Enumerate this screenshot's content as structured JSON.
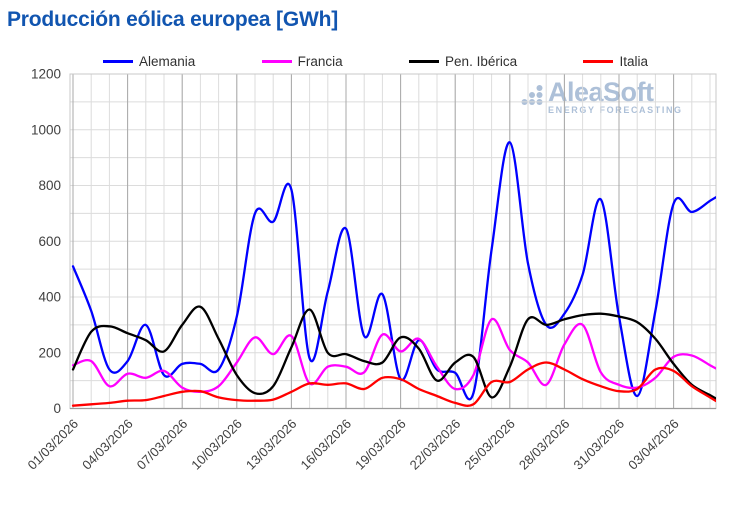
{
  "title": "Producción eólica europea [GWh]",
  "watermark": {
    "brand": "AleaSoft",
    "tagline": "ENERGY FORECASTING",
    "color": "#a9bdd6"
  },
  "colors": {
    "title": "#1155b0",
    "axis_text": "#3f3f3f",
    "grid_minor": "#dcdcdc",
    "grid_major": "#a9a9a9",
    "plot_border": "#c8c8c8",
    "axis_line": "#9b9b9b",
    "background": "#ffffff"
  },
  "chart_data": {
    "type": "line",
    "title": "Producción eólica europea [GWh]",
    "xlabel": "",
    "ylabel": "GWh",
    "ylim": [
      0,
      1200
    ],
    "y_ticks": [
      0,
      200,
      400,
      600,
      800,
      1000,
      1200
    ],
    "y_minor_step": 100,
    "grid": "both",
    "legend_position": "top",
    "x_tick_labels": [
      "01/03/2026",
      "04/03/2026",
      "07/03/2026",
      "10/03/2026",
      "13/03/2026",
      "16/03/2026",
      "19/03/2026",
      "22/03/2026",
      "25/03/2026",
      "28/03/2026",
      "31/03/2026",
      "03/04/2026"
    ],
    "x_tick_days": [
      0,
      3,
      6,
      9,
      12,
      15,
      18,
      21,
      24,
      27,
      30,
      33
    ],
    "categories": [
      "01/03/2026",
      "02/03/2026",
      "03/03/2026",
      "04/03/2026",
      "05/03/2026",
      "06/03/2026",
      "07/03/2026",
      "08/03/2026",
      "09/03/2026",
      "10/03/2026",
      "11/03/2026",
      "12/03/2026",
      "13/03/2026",
      "14/03/2026",
      "15/03/2026",
      "16/03/2026",
      "17/03/2026",
      "18/03/2026",
      "19/03/2026",
      "20/03/2026",
      "21/03/2026",
      "22/03/2026",
      "23/03/2026",
      "24/03/2026",
      "25/03/2026",
      "26/03/2026",
      "27/03/2026",
      "28/03/2026",
      "29/03/2026",
      "30/03/2026",
      "31/03/2026",
      "01/04/2026",
      "02/04/2026",
      "03/04/2026",
      "04/04/2026",
      "05/04/2026"
    ],
    "series": [
      {
        "name": "Alemania",
        "color": "#0000ff",
        "values": [
          510,
          350,
          140,
          170,
          300,
          120,
          160,
          160,
          140,
          330,
          700,
          670,
          785,
          180,
          420,
          645,
          260,
          410,
          105,
          245,
          140,
          128,
          55,
          570,
          955,
          520,
          300,
          340,
          480,
          750,
          330,
          45,
          350,
          735,
          705,
          745
        ]
      },
      {
        "name": "Francia",
        "color": "#ff00ff",
        "values": [
          155,
          170,
          80,
          125,
          110,
          135,
          75,
          60,
          80,
          165,
          255,
          195,
          260,
          90,
          150,
          150,
          130,
          265,
          205,
          250,
          150,
          70,
          120,
          320,
          210,
          165,
          85,
          230,
          300,
          130,
          85,
          75,
          110,
          185,
          190,
          155
        ]
      },
      {
        "name": "Pen. Ibérica",
        "color": "#000000",
        "values": [
          140,
          275,
          295,
          270,
          245,
          205,
          300,
          365,
          250,
          120,
          55,
          80,
          220,
          355,
          200,
          195,
          170,
          165,
          255,
          215,
          100,
          165,
          185,
          40,
          150,
          320,
          300,
          320,
          335,
          340,
          330,
          310,
          250,
          160,
          85,
          48
        ]
      },
      {
        "name": "Italia",
        "color": "#ff0000",
        "values": [
          10,
          15,
          20,
          28,
          30,
          45,
          60,
          62,
          40,
          30,
          28,
          32,
          60,
          90,
          85,
          90,
          70,
          110,
          105,
          70,
          45,
          20,
          15,
          95,
          95,
          140,
          165,
          140,
          105,
          80,
          62,
          70,
          140,
          135,
          80,
          40
        ]
      }
    ]
  }
}
